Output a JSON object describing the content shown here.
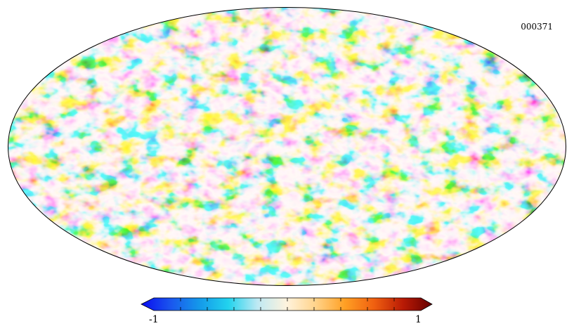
{
  "map": {
    "id_label": "000371",
    "projection": "mollweide",
    "colormap": [
      "#0a0cf0",
      "#1a55ee",
      "#1499ea",
      "#22d3ee",
      "#bfe9f3",
      "#fff3dd",
      "#ffd38a",
      "#ffa024",
      "#f06010",
      "#b91a05",
      "#650000"
    ]
  },
  "colorbar": {
    "min_label": "-1",
    "max_label": "1"
  }
}
